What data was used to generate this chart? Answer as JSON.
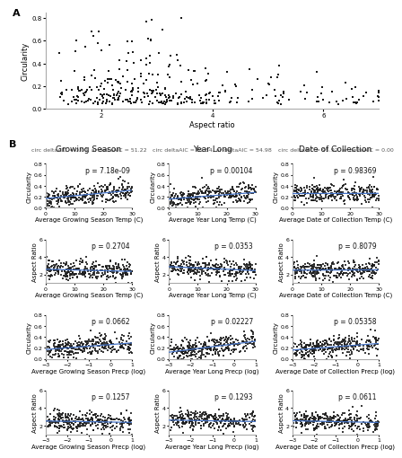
{
  "panel_A": {
    "xlabel": "Aspect ratio",
    "ylabel": "Circularity",
    "xlim": [
      1,
      7
    ],
    "ylim": [
      0.0,
      0.85
    ],
    "xticks": [
      2,
      4,
      6
    ],
    "yticks": [
      0.0,
      0.2,
      0.4,
      0.6,
      0.8
    ],
    "seed_A": 42
  },
  "panel_B": {
    "columns": [
      "Growing Season",
      "Year Long",
      "Date of Collection"
    ],
    "col_subtitles": [
      "circ deltaAIC = 0.00, ar deltaAIC = 51.22",
      "circ deltaAIC = 62.54, ar deltaAIC = 54.98",
      "circ deltaAIC = 95.92, ar deltaAIC = 0.00"
    ],
    "rows": [
      {
        "ylabel": "Circularity",
        "xtype": "temp",
        "xlim": [
          0,
          30
        ],
        "ylim": [
          0.0,
          0.8
        ],
        "xticks": [
          0,
          10,
          20,
          30
        ],
        "yticks": [
          0.0,
          0.2,
          0.4,
          0.6,
          0.8
        ],
        "p_values": [
          "p = 7.18e-09",
          "p = 0.00104",
          "p = 0.98369"
        ],
        "trend_slopes": [
          0.005,
          0.004,
          0.0001
        ],
        "trend_intercepts": [
          0.17,
          0.16,
          0.26
        ]
      },
      {
        "ylabel": "Aspect Ratio",
        "xtype": "temp",
        "xlim": [
          0,
          30
        ],
        "ylim": [
          1,
          6
        ],
        "xticks": [
          0,
          10,
          20,
          30
        ],
        "yticks": [
          2,
          4,
          6
        ],
        "p_values": [
          "p = 0.2704",
          "p = 0.0353",
          "p = 0.8079"
        ],
        "trend_slopes": [
          -0.008,
          -0.015,
          0.001
        ],
        "trend_intercepts": [
          2.6,
          2.9,
          2.5
        ]
      },
      {
        "ylabel": "Circularity",
        "xtype": "precp",
        "xlim": [
          -3,
          1
        ],
        "ylim": [
          0.0,
          0.8
        ],
        "xticks": [
          -3,
          -2,
          -1,
          0,
          1
        ],
        "yticks": [
          0.0,
          0.2,
          0.4,
          0.6,
          0.8
        ],
        "p_values": [
          "p = 0.0662",
          "p = 0.02227",
          "p = 0.05358"
        ],
        "trend_slopes": [
          0.03,
          0.05,
          0.03
        ],
        "trend_intercepts": [
          0.26,
          0.27,
          0.25
        ]
      },
      {
        "ylabel": "Aspect Ratio",
        "xtype": "precp",
        "xlim": [
          -3,
          1
        ],
        "ylim": [
          1,
          6
        ],
        "xticks": [
          -3,
          -2,
          -1,
          0,
          1
        ],
        "yticks": [
          2,
          4,
          6
        ],
        "p_values": [
          "p = 0.1257",
          "p = 0.1293",
          "p = 0.0611"
        ],
        "trend_slopes": [
          -0.04,
          -0.04,
          -0.05
        ],
        "trend_intercepts": [
          2.4,
          2.5,
          2.4
        ]
      }
    ],
    "xlabels_temp": [
      "Average Growing Season Temp (C)",
      "Average Year Long Temp (C)",
      "Average Date of Collection Temp (C)"
    ],
    "xlabels_precp": [
      "Average Growing Season Precp (log)",
      "Average Year Long Precp (log)",
      "Average Date of Collection Precp (log)"
    ],
    "seed_B": 77,
    "n_points": 300,
    "dot_color": "#1a1a1a",
    "line_color": "#4472C4",
    "dot_size": 2.5
  },
  "background_color": "#ffffff",
  "font_size_label": 6,
  "font_size_title": 6.5,
  "font_size_subtitle": 4.5,
  "font_size_axis": 5,
  "font_size_pval": 5.5,
  "font_size_panel": 8
}
